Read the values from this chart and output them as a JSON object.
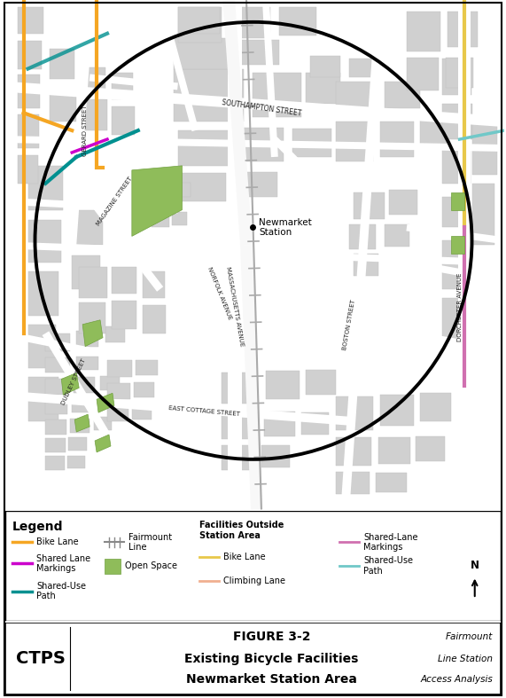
{
  "fig_width": 5.71,
  "fig_height": 7.87,
  "dpi": 100,
  "background_color": "#ffffff",
  "map_bg_color": "#f0f0f0",
  "title_text1": "FIGURE 3-2",
  "title_text2": "Existing Bicycle Facilities",
  "title_text3": "Newmarket Station Area",
  "ctps_text": "CTPS",
  "subtitle_right1": "Fairmount",
  "subtitle_right2": "Line Station",
  "subtitle_right3": "Access Analysis",
  "legend_title": "Legend",
  "green_space_color": "#8fbc5a",
  "block_color": "#cccccc",
  "road_color": "#ffffff",
  "map_circle_color": "#000000",
  "map_circle_lw": 2.8,
  "orange_bike": "#f5a623",
  "magenta_shared": "#cc00cc",
  "teal_path": "#009090",
  "yellow_bike_outside": "#e8c84a",
  "peach_climbing": "#f0b090",
  "pink_shared_outside": "#d070b0",
  "cyan_path_outside": "#70c8c8"
}
